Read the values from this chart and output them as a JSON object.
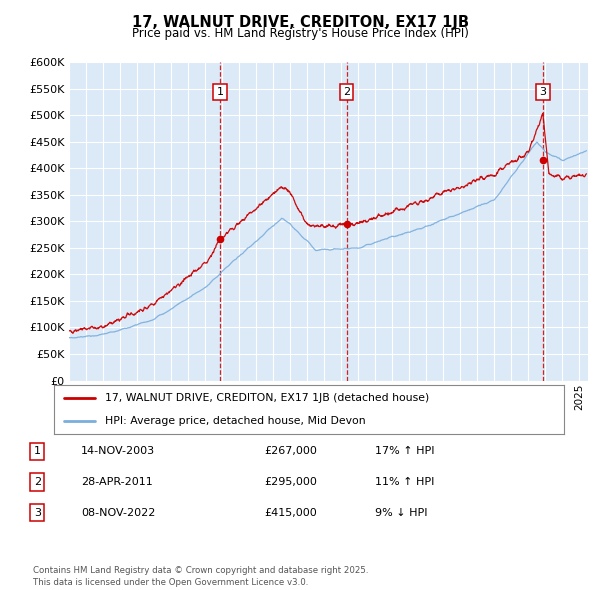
{
  "title": "17, WALNUT DRIVE, CREDITON, EX17 1JB",
  "subtitle": "Price paid vs. HM Land Registry's House Price Index (HPI)",
  "ylim": [
    0,
    600000
  ],
  "yticks": [
    0,
    50000,
    100000,
    150000,
    200000,
    250000,
    300000,
    350000,
    400000,
    450000,
    500000,
    550000,
    600000
  ],
  "xlim_start": 1995.0,
  "xlim_end": 2025.5,
  "background_color": "#FFFFFF",
  "plot_bg_color": "#DCE9F7",
  "grid_color": "#FFFFFF",
  "red_line_color": "#CC0000",
  "blue_line_color": "#7AAEDC",
  "vertical_line_color": "#CC0000",
  "legend_label_red": "17, WALNUT DRIVE, CREDITON, EX17 1JB (detached house)",
  "legend_label_blue": "HPI: Average price, detached house, Mid Devon",
  "transactions": [
    {
      "num": 1,
      "date": "14-NOV-2003",
      "price": 267000,
      "pct": "17%",
      "dir": "↑",
      "x": 2003.87
    },
    {
      "num": 2,
      "date": "28-APR-2011",
      "price": 295000,
      "pct": "11%",
      "dir": "↑",
      "x": 2011.32
    },
    {
      "num": 3,
      "date": "08-NOV-2022",
      "price": 415000,
      "pct": "9%",
      "dir": "↓",
      "x": 2022.85
    }
  ],
  "footnote": "Contains HM Land Registry data © Crown copyright and database right 2025.\nThis data is licensed under the Open Government Licence v3.0."
}
